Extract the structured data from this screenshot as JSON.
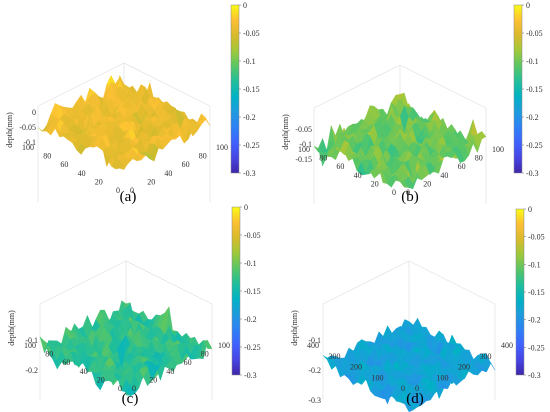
{
  "chart_data": [
    {
      "type": "surface",
      "panel_label": "(a)",
      "zlabel": "depth(mm)",
      "z_ticks": [
        "0",
        "-0.05",
        "-0.1"
      ],
      "x_ticks": [
        "0",
        "20",
        "40",
        "60",
        "80",
        "100"
      ],
      "y_ticks": [
        "0",
        "20",
        "40",
        "60",
        "80",
        "100"
      ],
      "colorbar": {
        "min": -0.3,
        "max": 0,
        "ticks": [
          "0",
          "-0.05",
          "-0.1",
          "-0.15",
          "-0.2",
          "-0.25",
          "-0.3"
        ]
      },
      "surface_mean_depth": -0.04,
      "surface_roughness": 0.04
    },
    {
      "type": "surface",
      "panel_label": "(b)",
      "zlabel": "depth(mm)",
      "z_ticks": [
        "-0.05",
        "-0.1",
        "-0.15"
      ],
      "x_ticks": [
        "0",
        "20",
        "40",
        "60",
        "80",
        "100"
      ],
      "y_ticks": [
        "0",
        "20",
        "40",
        "60",
        "80",
        "100"
      ],
      "colorbar": {
        "min": -0.3,
        "max": 0,
        "ticks": [
          "0",
          "-0.05",
          "-0.1",
          "-0.15",
          "-0.2",
          "-0.25",
          "-0.3"
        ]
      },
      "surface_mean_depth": -0.1,
      "surface_roughness": 0.045
    },
    {
      "type": "surface",
      "panel_label": "(c)",
      "zlabel": "depth(mm)",
      "z_ticks": [
        "-0.1",
        "-0.2"
      ],
      "x_ticks": [
        "0",
        "20",
        "40",
        "60",
        "80",
        "100"
      ],
      "y_ticks": [
        "0",
        "20",
        "40",
        "60",
        "80",
        "100"
      ],
      "colorbar": {
        "min": -0.3,
        "max": 0,
        "ticks": [
          "0",
          "-0.05",
          "-0.1",
          "-0.15",
          "-0.2",
          "-0.25",
          "-0.3"
        ]
      },
      "surface_mean_depth": -0.13,
      "surface_roughness": 0.045
    },
    {
      "type": "surface",
      "panel_label": "(d)",
      "zlabel": "depth(mm)",
      "z_ticks": [
        "-0.1",
        "-0.2",
        "-0.3"
      ],
      "x_ticks": [
        "0",
        "100",
        "200",
        "300",
        "400"
      ],
      "y_ticks": [
        "0",
        "100",
        "200",
        "300",
        "400"
      ],
      "colorbar": {
        "min": -0.3,
        "max": 0,
        "ticks": [
          "0",
          "-0.05",
          "-0.1",
          "-0.15",
          "-0.2",
          "-0.25",
          "-0.3"
        ]
      },
      "surface_mean_depth": -0.18,
      "surface_roughness": 0.035
    }
  ],
  "colormap": [
    "#3e26a8",
    "#4745e4",
    "#3f62ff",
    "#2d81f5",
    "#1e9bde",
    "#00b2c4",
    "#21be9a",
    "#58c665",
    "#9fc83a",
    "#d9ba2c",
    "#fcc033",
    "#f9fb15"
  ]
}
